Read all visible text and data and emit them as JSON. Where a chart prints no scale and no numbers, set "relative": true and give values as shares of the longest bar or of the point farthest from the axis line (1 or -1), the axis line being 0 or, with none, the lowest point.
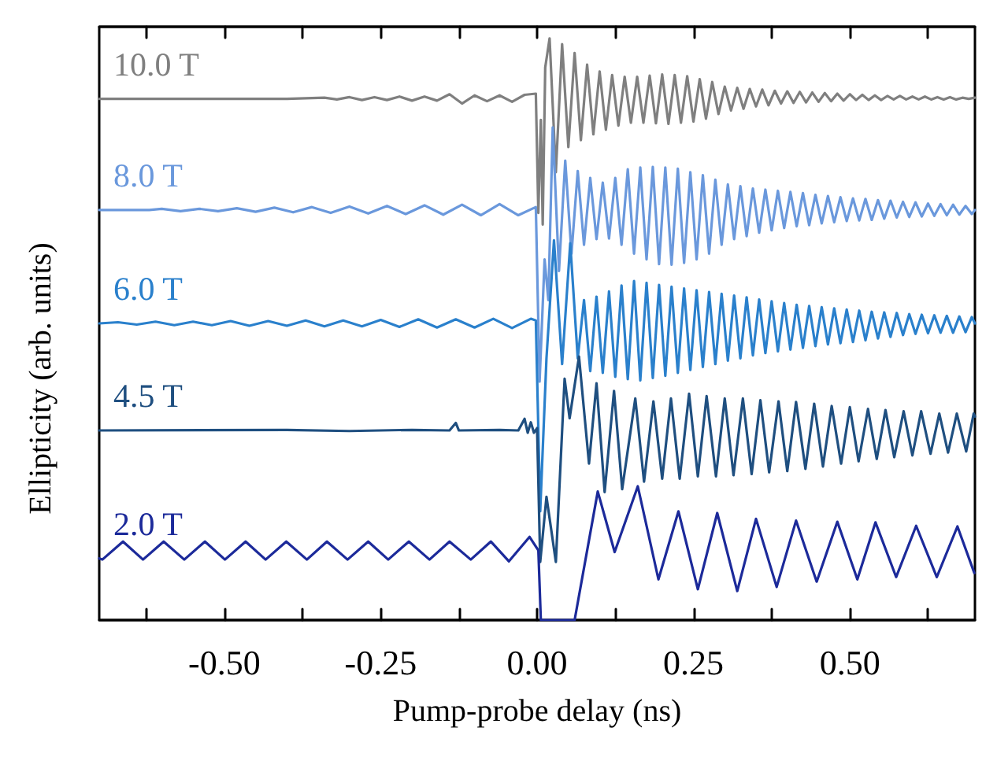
{
  "chart_data": {
    "type": "line",
    "xlabel": "Pump-probe delay (ns)",
    "ylabel": "Ellipticity (arb. units)",
    "relative": true,
    "grid": false,
    "legend": false,
    "marker": "none",
    "xlim": [
      -0.7,
      0.7
    ],
    "xticks": [
      {
        "value": -0.625,
        "label": null
      },
      {
        "value": -0.5,
        "label": "-0.50"
      },
      {
        "value": -0.375,
        "label": null
      },
      {
        "value": -0.25,
        "label": "-0.25"
      },
      {
        "value": -0.125,
        "label": null
      },
      {
        "value": 0,
        "label": "0.00"
      },
      {
        "value": 0.125,
        "label": null
      },
      {
        "value": 0.25,
        "label": "0.25"
      },
      {
        "value": 0.375,
        "label": null
      },
      {
        "value": 0.5,
        "label": "0.50"
      },
      {
        "value": 0.625,
        "label": null
      }
    ],
    "series": [
      {
        "name": "10.0 T",
        "color": "#7f7f7f",
        "x": [
          -0.7,
          -0.4,
          -0.34,
          -0.32,
          -0.3,
          -0.28,
          -0.26,
          -0.24,
          -0.22,
          -0.2,
          -0.18,
          -0.16,
          -0.14,
          -0.12,
          -0.1,
          -0.08,
          -0.06,
          -0.04,
          -0.02,
          -0.002,
          0.002,
          0.006,
          0.009,
          0.013,
          0.02,
          0.03,
          0.04,
          0.05,
          0.06,
          0.07,
          0.08,
          0.09,
          0.1,
          0.11,
          0.12,
          0.13,
          0.14,
          0.15,
          0.16,
          0.17,
          0.18,
          0.19,
          0.2,
          0.21,
          0.22,
          0.23,
          0.24,
          0.25,
          0.26,
          0.27,
          0.28,
          0.29,
          0.3,
          0.31,
          0.32,
          0.33,
          0.34,
          0.35,
          0.36,
          0.37,
          0.38,
          0.39,
          0.4,
          0.41,
          0.42,
          0.43,
          0.44,
          0.45,
          0.46,
          0.47,
          0.48,
          0.49,
          0.5,
          0.51,
          0.52,
          0.53,
          0.54,
          0.55,
          0.56,
          0.57,
          0.58,
          0.59,
          0.6,
          0.61,
          0.62,
          0.63,
          0.64,
          0.65,
          0.66,
          0.67,
          0.68,
          0.69,
          0.7
        ],
        "values": [
          0.896,
          0.896,
          0.898,
          0.895,
          0.899,
          0.894,
          0.899,
          0.894,
          0.9,
          0.893,
          0.9,
          0.893,
          0.904,
          0.888,
          0.902,
          0.892,
          0.902,
          0.891,
          0.903,
          0.905,
          0.7,
          0.86,
          0.68,
          0.95,
          1.0,
          0.77,
          0.99,
          0.813,
          0.975,
          0.825,
          0.955,
          0.835,
          0.943,
          0.843,
          0.937,
          0.85,
          0.934,
          0.855,
          0.934,
          0.855,
          0.936,
          0.854,
          0.938,
          0.853,
          0.937,
          0.855,
          0.935,
          0.857,
          0.93,
          0.862,
          0.925,
          0.87,
          0.917,
          0.876,
          0.915,
          0.879,
          0.913,
          0.883,
          0.912,
          0.885,
          0.91,
          0.888,
          0.909,
          0.889,
          0.908,
          0.89,
          0.907,
          0.891,
          0.906,
          0.892,
          0.905,
          0.893,
          0.904,
          0.894,
          0.903,
          0.894,
          0.902,
          0.894,
          0.901,
          0.895,
          0.901,
          0.895,
          0.9,
          0.895,
          0.9,
          0.895,
          0.899,
          0.895,
          0.899,
          0.895,
          0.898,
          0.896,
          0.898
        ]
      },
      {
        "name": "8.0 T",
        "color": "#6a98dc",
        "x": [
          -0.7,
          -0.62,
          -0.6,
          -0.57,
          -0.54,
          -0.51,
          -0.48,
          -0.45,
          -0.42,
          -0.39,
          -0.36,
          -0.33,
          -0.3,
          -0.27,
          -0.24,
          -0.21,
          -0.18,
          -0.15,
          -0.12,
          -0.09,
          -0.06,
          -0.03,
          -0.002,
          0.004,
          0.012,
          0.018,
          0.025,
          0.035,
          0.045,
          0.055,
          0.065,
          0.075,
          0.085,
          0.095,
          0.105,
          0.115,
          0.125,
          0.135,
          0.145,
          0.155,
          0.165,
          0.175,
          0.185,
          0.195,
          0.205,
          0.215,
          0.225,
          0.235,
          0.245,
          0.255,
          0.265,
          0.275,
          0.285,
          0.295,
          0.305,
          0.315,
          0.325,
          0.335,
          0.345,
          0.355,
          0.365,
          0.375,
          0.385,
          0.395,
          0.405,
          0.415,
          0.425,
          0.435,
          0.445,
          0.455,
          0.465,
          0.475,
          0.485,
          0.495,
          0.505,
          0.515,
          0.525,
          0.535,
          0.545,
          0.555,
          0.565,
          0.575,
          0.585,
          0.595,
          0.605,
          0.615,
          0.625,
          0.635,
          0.645,
          0.655,
          0.665,
          0.675,
          0.685,
          0.695,
          0.7
        ],
        "values": [
          0.705,
          0.705,
          0.707,
          0.703,
          0.707,
          0.703,
          0.708,
          0.702,
          0.709,
          0.701,
          0.71,
          0.7,
          0.711,
          0.699,
          0.712,
          0.698,
          0.713,
          0.697,
          0.714,
          0.696,
          0.715,
          0.696,
          0.71,
          0.41,
          0.62,
          0.55,
          0.847,
          0.6,
          0.79,
          0.63,
          0.772,
          0.645,
          0.76,
          0.655,
          0.752,
          0.656,
          0.76,
          0.645,
          0.775,
          0.63,
          0.778,
          0.62,
          0.779,
          0.612,
          0.778,
          0.611,
          0.776,
          0.614,
          0.77,
          0.62,
          0.765,
          0.63,
          0.757,
          0.645,
          0.749,
          0.655,
          0.746,
          0.66,
          0.742,
          0.666,
          0.74,
          0.67,
          0.738,
          0.674,
          0.736,
          0.677,
          0.734,
          0.679,
          0.731,
          0.682,
          0.729,
          0.684,
          0.727,
          0.686,
          0.725,
          0.687,
          0.724,
          0.688,
          0.722,
          0.69,
          0.721,
          0.692,
          0.719,
          0.693,
          0.718,
          0.694,
          0.716,
          0.695,
          0.715,
          0.696,
          0.714,
          0.697,
          0.712,
          0.698,
          0.705
        ]
      },
      {
        "name": "6.0 T",
        "color": "#2a80cc",
        "x": [
          -0.7,
          -0.67,
          -0.64,
          -0.61,
          -0.58,
          -0.55,
          -0.52,
          -0.49,
          -0.46,
          -0.43,
          -0.4,
          -0.37,
          -0.34,
          -0.31,
          -0.28,
          -0.25,
          -0.22,
          -0.19,
          -0.16,
          -0.13,
          -0.1,
          -0.07,
          -0.04,
          -0.01,
          -0.002,
          0.005,
          0.015,
          0.027,
          0.04,
          0.053,
          0.065,
          0.075,
          0.085,
          0.095,
          0.105,
          0.115,
          0.125,
          0.135,
          0.145,
          0.155,
          0.165,
          0.175,
          0.185,
          0.195,
          0.205,
          0.215,
          0.225,
          0.235,
          0.245,
          0.255,
          0.265,
          0.275,
          0.285,
          0.295,
          0.305,
          0.315,
          0.325,
          0.335,
          0.345,
          0.355,
          0.365,
          0.375,
          0.385,
          0.395,
          0.405,
          0.415,
          0.425,
          0.435,
          0.445,
          0.455,
          0.465,
          0.475,
          0.485,
          0.495,
          0.505,
          0.515,
          0.525,
          0.535,
          0.545,
          0.555,
          0.565,
          0.575,
          0.585,
          0.595,
          0.605,
          0.615,
          0.625,
          0.635,
          0.645,
          0.655,
          0.665,
          0.675,
          0.685,
          0.695,
          0.7
        ],
        "values": [
          0.51,
          0.512,
          0.508,
          0.513,
          0.507,
          0.513,
          0.507,
          0.514,
          0.506,
          0.514,
          0.506,
          0.515,
          0.505,
          0.515,
          0.505,
          0.516,
          0.504,
          0.517,
          0.503,
          0.517,
          0.503,
          0.518,
          0.502,
          0.518,
          0.515,
          0.187,
          0.45,
          0.653,
          0.44,
          0.648,
          0.45,
          0.55,
          0.428,
          0.556,
          0.425,
          0.565,
          0.418,
          0.575,
          0.414,
          0.583,
          0.412,
          0.58,
          0.416,
          0.576,
          0.42,
          0.573,
          0.425,
          0.57,
          0.43,
          0.567,
          0.435,
          0.564,
          0.44,
          0.561,
          0.446,
          0.558,
          0.45,
          0.555,
          0.455,
          0.551,
          0.459,
          0.548,
          0.462,
          0.545,
          0.465,
          0.542,
          0.468,
          0.54,
          0.471,
          0.538,
          0.474,
          0.536,
          0.476,
          0.534,
          0.478,
          0.532,
          0.481,
          0.53,
          0.484,
          0.529,
          0.487,
          0.528,
          0.49,
          0.526,
          0.492,
          0.525,
          0.493,
          0.524,
          0.494,
          0.523,
          0.494,
          0.522,
          0.495,
          0.521,
          0.51
        ]
      },
      {
        "name": "4.5 T",
        "color": "#1f4f80",
        "x": [
          -0.7,
          -0.4,
          -0.3,
          -0.2,
          -0.14,
          -0.13,
          -0.125,
          -0.06,
          -0.03,
          -0.02,
          -0.015,
          -0.01,
          -0.005,
          0,
          0.005,
          0.015,
          0.03,
          0.044,
          0.052,
          0.067,
          0.083,
          0.095,
          0.108,
          0.123,
          0.136,
          0.157,
          0.171,
          0.186,
          0.2,
          0.214,
          0.228,
          0.243,
          0.257,
          0.271,
          0.286,
          0.3,
          0.314,
          0.329,
          0.343,
          0.357,
          0.371,
          0.386,
          0.4,
          0.414,
          0.429,
          0.443,
          0.457,
          0.471,
          0.486,
          0.5,
          0.514,
          0.529,
          0.543,
          0.557,
          0.571,
          0.586,
          0.6,
          0.614,
          0.629,
          0.643,
          0.657,
          0.671,
          0.686,
          0.698,
          0.7
        ],
        "values": [
          0.326,
          0.327,
          0.325,
          0.327,
          0.326,
          0.339,
          0.326,
          0.327,
          0.326,
          0.346,
          0.322,
          0.34,
          0.322,
          0.33,
          0.1,
          0.212,
          0.1,
          0.415,
          0.347,
          0.453,
          0.269,
          0.407,
          0.22,
          0.394,
          0.225,
          0.381,
          0.238,
          0.376,
          0.243,
          0.381,
          0.243,
          0.389,
          0.247,
          0.385,
          0.247,
          0.381,
          0.249,
          0.381,
          0.251,
          0.378,
          0.254,
          0.376,
          0.256,
          0.375,
          0.26,
          0.372,
          0.264,
          0.368,
          0.269,
          0.366,
          0.273,
          0.363,
          0.277,
          0.361,
          0.28,
          0.359,
          0.283,
          0.359,
          0.286,
          0.355,
          0.288,
          0.355,
          0.29,
          0.355,
          0.35
        ]
      },
      {
        "name": "2.0 T",
        "color": "#1c2a9a",
        "x": [
          -0.7,
          -0.695,
          -0.662,
          -0.63,
          -0.597,
          -0.564,
          -0.531,
          -0.499,
          -0.466,
          -0.434,
          -0.401,
          -0.368,
          -0.336,
          -0.303,
          -0.27,
          -0.238,
          -0.205,
          -0.172,
          -0.14,
          -0.106,
          -0.074,
          -0.045,
          -0.012,
          0.002,
          0.006,
          0.06,
          0.097,
          0.124,
          0.161,
          0.194,
          0.226,
          0.257,
          0.288,
          0.32,
          0.35,
          0.383,
          0.414,
          0.447,
          0.48,
          0.512,
          0.541,
          0.574,
          0.606,
          0.639,
          0.672,
          0.699
        ],
        "values": [
          0.106,
          0.104,
          0.135,
          0.104,
          0.135,
          0.104,
          0.135,
          0.104,
          0.135,
          0.104,
          0.135,
          0.104,
          0.135,
          0.104,
          0.135,
          0.104,
          0.135,
          0.104,
          0.135,
          0.104,
          0.135,
          0.101,
          0.143,
          0.12,
          0,
          0,
          0.221,
          0.117,
          0.23,
          0.07,
          0.187,
          0.053,
          0.184,
          0.05,
          0.174,
          0.057,
          0.171,
          0.066,
          0.169,
          0.07,
          0.168,
          0.074,
          0.162,
          0.074,
          0.161,
          0.081
        ]
      }
    ]
  }
}
